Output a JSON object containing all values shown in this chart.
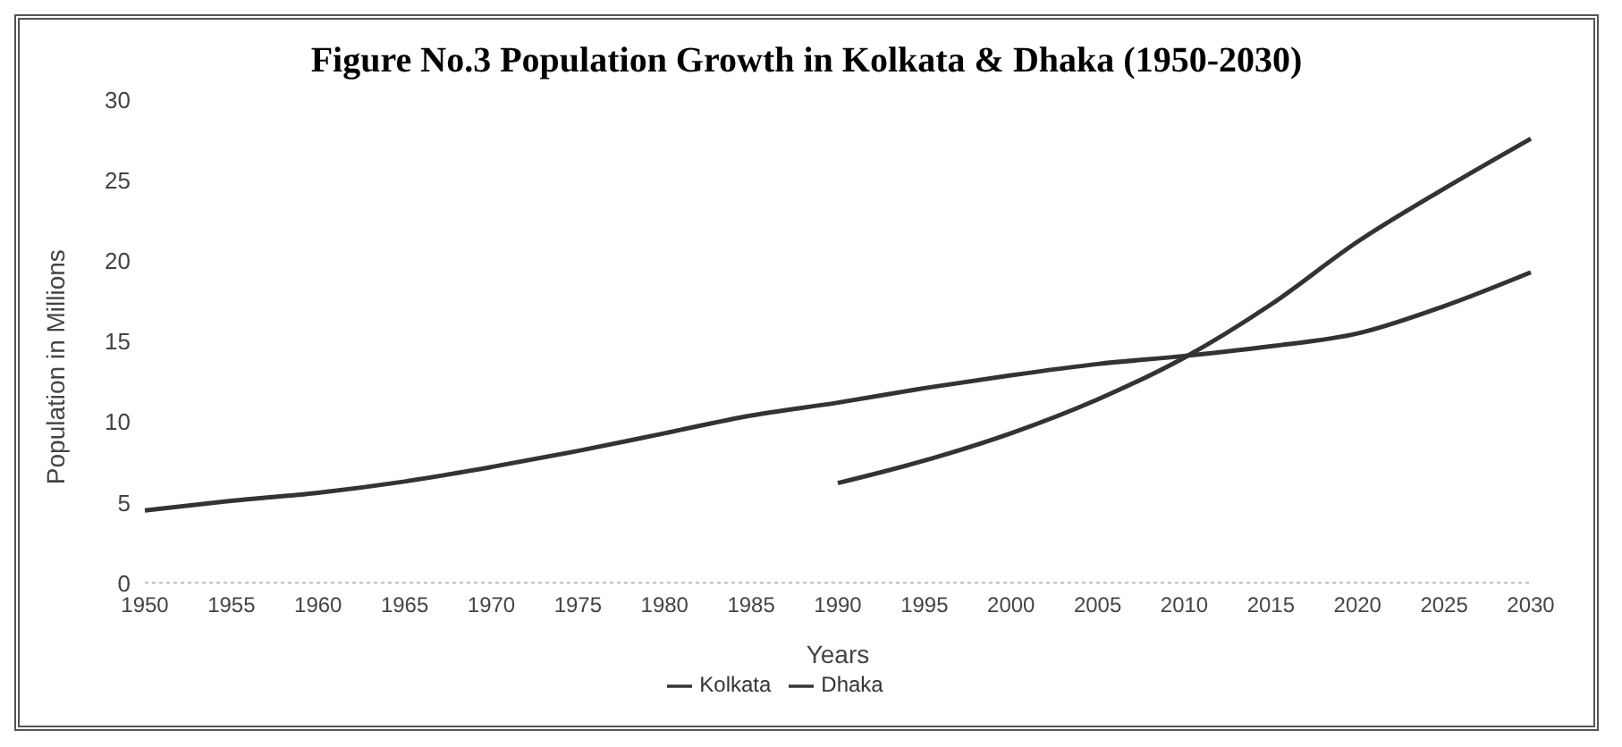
{
  "chart_data": {
    "type": "line",
    "title": "Figure No.3 Population Growth in Kolkata & Dhaka (1950-2030)",
    "xlabel": "Years",
    "ylabel": "Population in Millions",
    "categories": [
      "1950",
      "1955",
      "1960",
      "1965",
      "1970",
      "1975",
      "1980",
      "1985",
      "1990",
      "1995",
      "2000",
      "2005",
      "2010",
      "2015",
      "2020",
      "2025",
      "2030"
    ],
    "series": [
      {
        "name": "Kolkata",
        "color": "#333333",
        "values": [
          4.5,
          5.1,
          5.6,
          6.3,
          7.2,
          8.2,
          9.3,
          10.4,
          11.2,
          12.1,
          12.9,
          13.6,
          14.1,
          14.7,
          15.5,
          17.2,
          19.3
        ]
      },
      {
        "name": "Dhaka",
        "color": "#333333",
        "values": [
          null,
          null,
          null,
          null,
          null,
          null,
          null,
          null,
          6.2,
          7.6,
          9.3,
          11.4,
          14.0,
          17.3,
          21.2,
          24.5,
          27.6
        ]
      }
    ],
    "ylim": [
      0,
      30
    ],
    "yticks": [
      0,
      5,
      10,
      15,
      20,
      25,
      30
    ],
    "grid": false,
    "legend": "bottom",
    "marker": "none",
    "line_style": "solid"
  }
}
